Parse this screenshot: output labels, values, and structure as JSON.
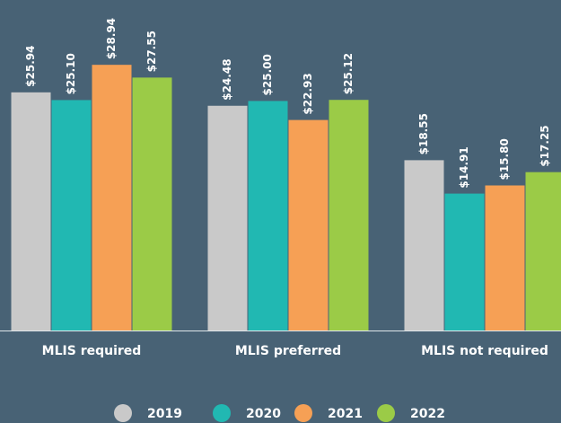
{
  "chart_data": {
    "type": "bar",
    "categories": [
      "MLIS required",
      "MLIS preferred",
      "MLIS not required"
    ],
    "series": [
      {
        "name": "2019",
        "color": "#c9c9c9",
        "values": [
          25.94,
          24.48,
          18.55
        ],
        "value_labels": [
          "$25.94",
          "$24.48",
          "$18.55"
        ]
      },
      {
        "name": "2020",
        "color": "#21b8b2",
        "values": [
          25.1,
          25.0,
          14.91
        ],
        "value_labels": [
          "$25.10",
          "$25.00",
          "$14.91"
        ]
      },
      {
        "name": "2021",
        "color": "#f6a055",
        "values": [
          28.94,
          22.93,
          15.8
        ],
        "value_labels": [
          "$28.94",
          "$22.93",
          "$15.80"
        ]
      },
      {
        "name": "2022",
        "color": "#9bcb47",
        "values": [
          27.55,
          25.12,
          17.25
        ],
        "value_labels": [
          "$27.55",
          "$25.12",
          "$17.25"
        ]
      }
    ],
    "ylim": [
      0,
      36
    ],
    "legend": "bottom"
  }
}
